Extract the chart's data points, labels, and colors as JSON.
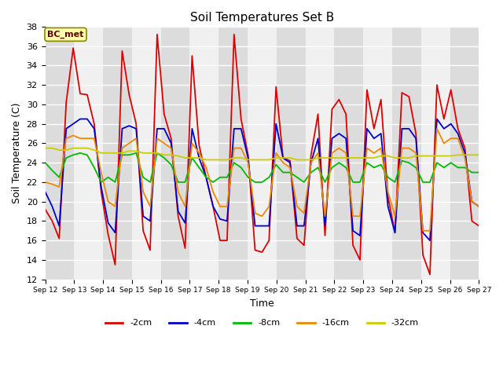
{
  "title": "Soil Temperatures Set B",
  "xlabel": "Time",
  "ylabel": "Soil Temperature (C)",
  "annotation": "BC_met",
  "ylim": [
    12,
    38
  ],
  "yticks": [
    12,
    14,
    16,
    18,
    20,
    22,
    24,
    26,
    28,
    30,
    32,
    34,
    36,
    38
  ],
  "fig_bg": "#ffffff",
  "plot_bg": "#f0f0f0",
  "alt_band_color": "#dcdcdc",
  "grid_color": "#ffffff",
  "colors": {
    "-2cm": "#dd0000",
    "-4cm": "#0000cc",
    "-8cm": "#00bb00",
    "-16cm": "#ee8800",
    "-32cm": "#cccc00"
  },
  "series": {
    "-2cm": [
      19.2,
      18.0,
      16.2,
      30.2,
      35.8,
      31.1,
      31.0,
      28.0,
      21.0,
      16.6,
      13.5,
      35.5,
      31.0,
      28.0,
      17.0,
      15.0,
      37.2,
      29.0,
      26.5,
      18.5,
      15.2,
      35.0,
      25.8,
      22.5,
      19.5,
      16.0,
      16.0,
      37.2,
      28.5,
      24.8,
      15.0,
      14.8,
      16.0,
      31.8,
      24.5,
      24.2,
      16.2,
      15.5,
      24.8,
      29.0,
      16.5,
      29.5,
      30.5,
      29.0,
      15.5,
      14.0,
      31.5,
      27.5,
      30.5,
      20.5,
      16.8,
      31.2,
      30.8,
      27.0,
      14.5,
      12.5,
      32.0,
      28.5,
      31.5,
      27.5,
      25.5,
      18.0,
      17.5
    ],
    "-4cm": [
      21.0,
      19.5,
      17.5,
      27.5,
      28.0,
      28.5,
      28.5,
      27.5,
      21.5,
      17.8,
      16.8,
      27.5,
      27.8,
      27.5,
      18.5,
      18.0,
      27.5,
      27.5,
      26.0,
      19.0,
      17.8,
      27.5,
      24.5,
      22.5,
      19.5,
      18.2,
      18.0,
      27.5,
      27.5,
      24.5,
      17.5,
      17.5,
      17.5,
      28.0,
      24.5,
      24.0,
      17.5,
      17.5,
      24.0,
      26.5,
      17.5,
      26.5,
      27.0,
      26.5,
      17.0,
      16.5,
      27.5,
      26.5,
      27.0,
      19.5,
      16.8,
      27.5,
      27.5,
      26.5,
      16.8,
      16.0,
      28.5,
      27.5,
      28.0,
      27.0,
      25.0,
      20.0,
      19.5
    ],
    "-8cm": [
      24.0,
      23.2,
      22.5,
      24.5,
      24.8,
      25.0,
      24.8,
      23.5,
      22.0,
      22.5,
      22.0,
      24.8,
      24.8,
      25.0,
      22.5,
      22.0,
      25.0,
      24.5,
      23.8,
      22.0,
      22.0,
      24.5,
      23.5,
      22.5,
      22.0,
      22.5,
      22.5,
      24.0,
      23.5,
      22.5,
      22.0,
      22.0,
      22.5,
      23.8,
      23.0,
      23.0,
      22.5,
      22.0,
      23.0,
      23.5,
      22.0,
      23.5,
      24.0,
      23.5,
      22.0,
      22.0,
      24.0,
      23.5,
      23.8,
      22.5,
      22.0,
      24.2,
      24.0,
      23.5,
      22.0,
      22.0,
      24.0,
      23.5,
      24.0,
      23.5,
      23.5,
      23.0,
      23.0
    ],
    "-16cm": [
      22.0,
      21.8,
      21.5,
      26.5,
      26.8,
      26.5,
      26.5,
      26.5,
      23.0,
      20.0,
      19.5,
      25.5,
      26.0,
      26.5,
      21.0,
      19.5,
      26.5,
      26.0,
      25.5,
      21.0,
      19.5,
      26.0,
      25.0,
      23.5,
      21.0,
      19.5,
      19.5,
      25.5,
      25.5,
      24.0,
      18.8,
      18.5,
      19.5,
      25.0,
      24.0,
      23.5,
      19.5,
      18.8,
      24.0,
      25.0,
      18.5,
      25.0,
      25.5,
      25.0,
      18.5,
      18.5,
      25.5,
      25.0,
      25.5,
      21.0,
      18.5,
      25.5,
      25.5,
      25.0,
      17.0,
      17.0,
      27.5,
      26.0,
      26.5,
      26.5,
      24.5,
      20.0,
      19.5
    ],
    "-32cm": [
      25.5,
      25.5,
      25.3,
      25.3,
      25.5,
      25.5,
      25.5,
      25.3,
      25.0,
      25.0,
      25.0,
      25.0,
      25.2,
      25.2,
      25.0,
      25.0,
      25.0,
      24.8,
      24.8,
      24.7,
      24.5,
      24.5,
      24.5,
      24.3,
      24.3,
      24.3,
      24.3,
      24.5,
      24.5,
      24.3,
      24.3,
      24.3,
      24.3,
      24.5,
      24.5,
      24.5,
      24.3,
      24.3,
      24.3,
      24.5,
      24.5,
      24.5,
      24.5,
      24.5,
      24.5,
      24.5,
      24.5,
      24.5,
      24.7,
      24.7,
      24.5,
      24.5,
      24.5,
      24.7,
      24.7,
      24.7,
      24.7,
      24.7,
      24.7,
      24.8,
      24.8,
      24.8,
      24.8
    ]
  },
  "x_labels": [
    "Sep 12",
    "Sep 13",
    "Sep 14",
    "Sep 15",
    "Sep 16",
    "Sep 17",
    "Sep 18",
    "Sep 19",
    "Sep 20",
    "Sep 21",
    "Sep 22",
    "Sep 23",
    "Sep 24",
    "Sep 25",
    "Sep 26",
    "Sep 27"
  ],
  "n_points": 63,
  "n_days": 15
}
